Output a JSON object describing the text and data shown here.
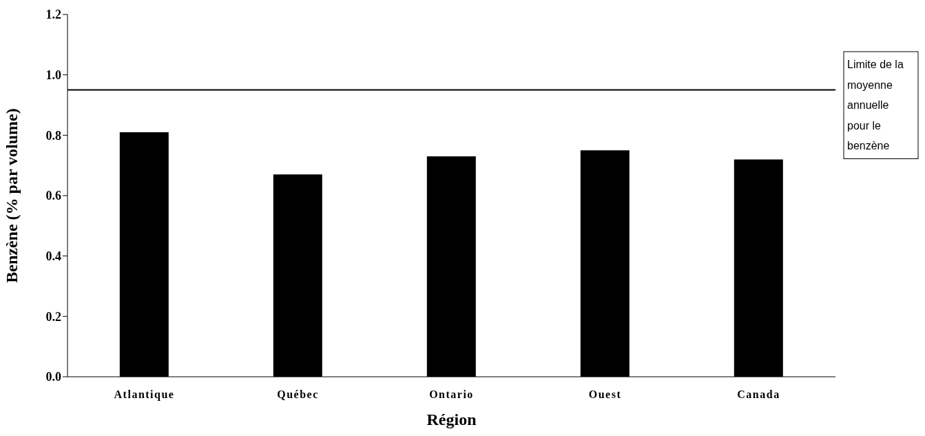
{
  "chart_data": {
    "type": "bar",
    "xlabel": "Région",
    "ylabel": "Benzène (% par volume)",
    "categories": [
      "Atlantique",
      "Québec",
      "Ontario",
      "Ouest",
      "Canada"
    ],
    "values": [
      0.81,
      0.67,
      0.73,
      0.75,
      0.72
    ],
    "color": "#000000",
    "ylim": [
      0,
      1.2
    ],
    "yticks": [
      {
        "value": 0,
        "label": "0.0"
      },
      0.2,
      0.4,
      0.6,
      0.8,
      {
        "value": 1,
        "label": "1.0"
      },
      1.2
    ],
    "ref_lines": [
      {
        "axis": "y",
        "value": 0.95,
        "label": "Limite de la moyenne annuelle pour le benzène",
        "color": "#000000"
      }
    ]
  }
}
